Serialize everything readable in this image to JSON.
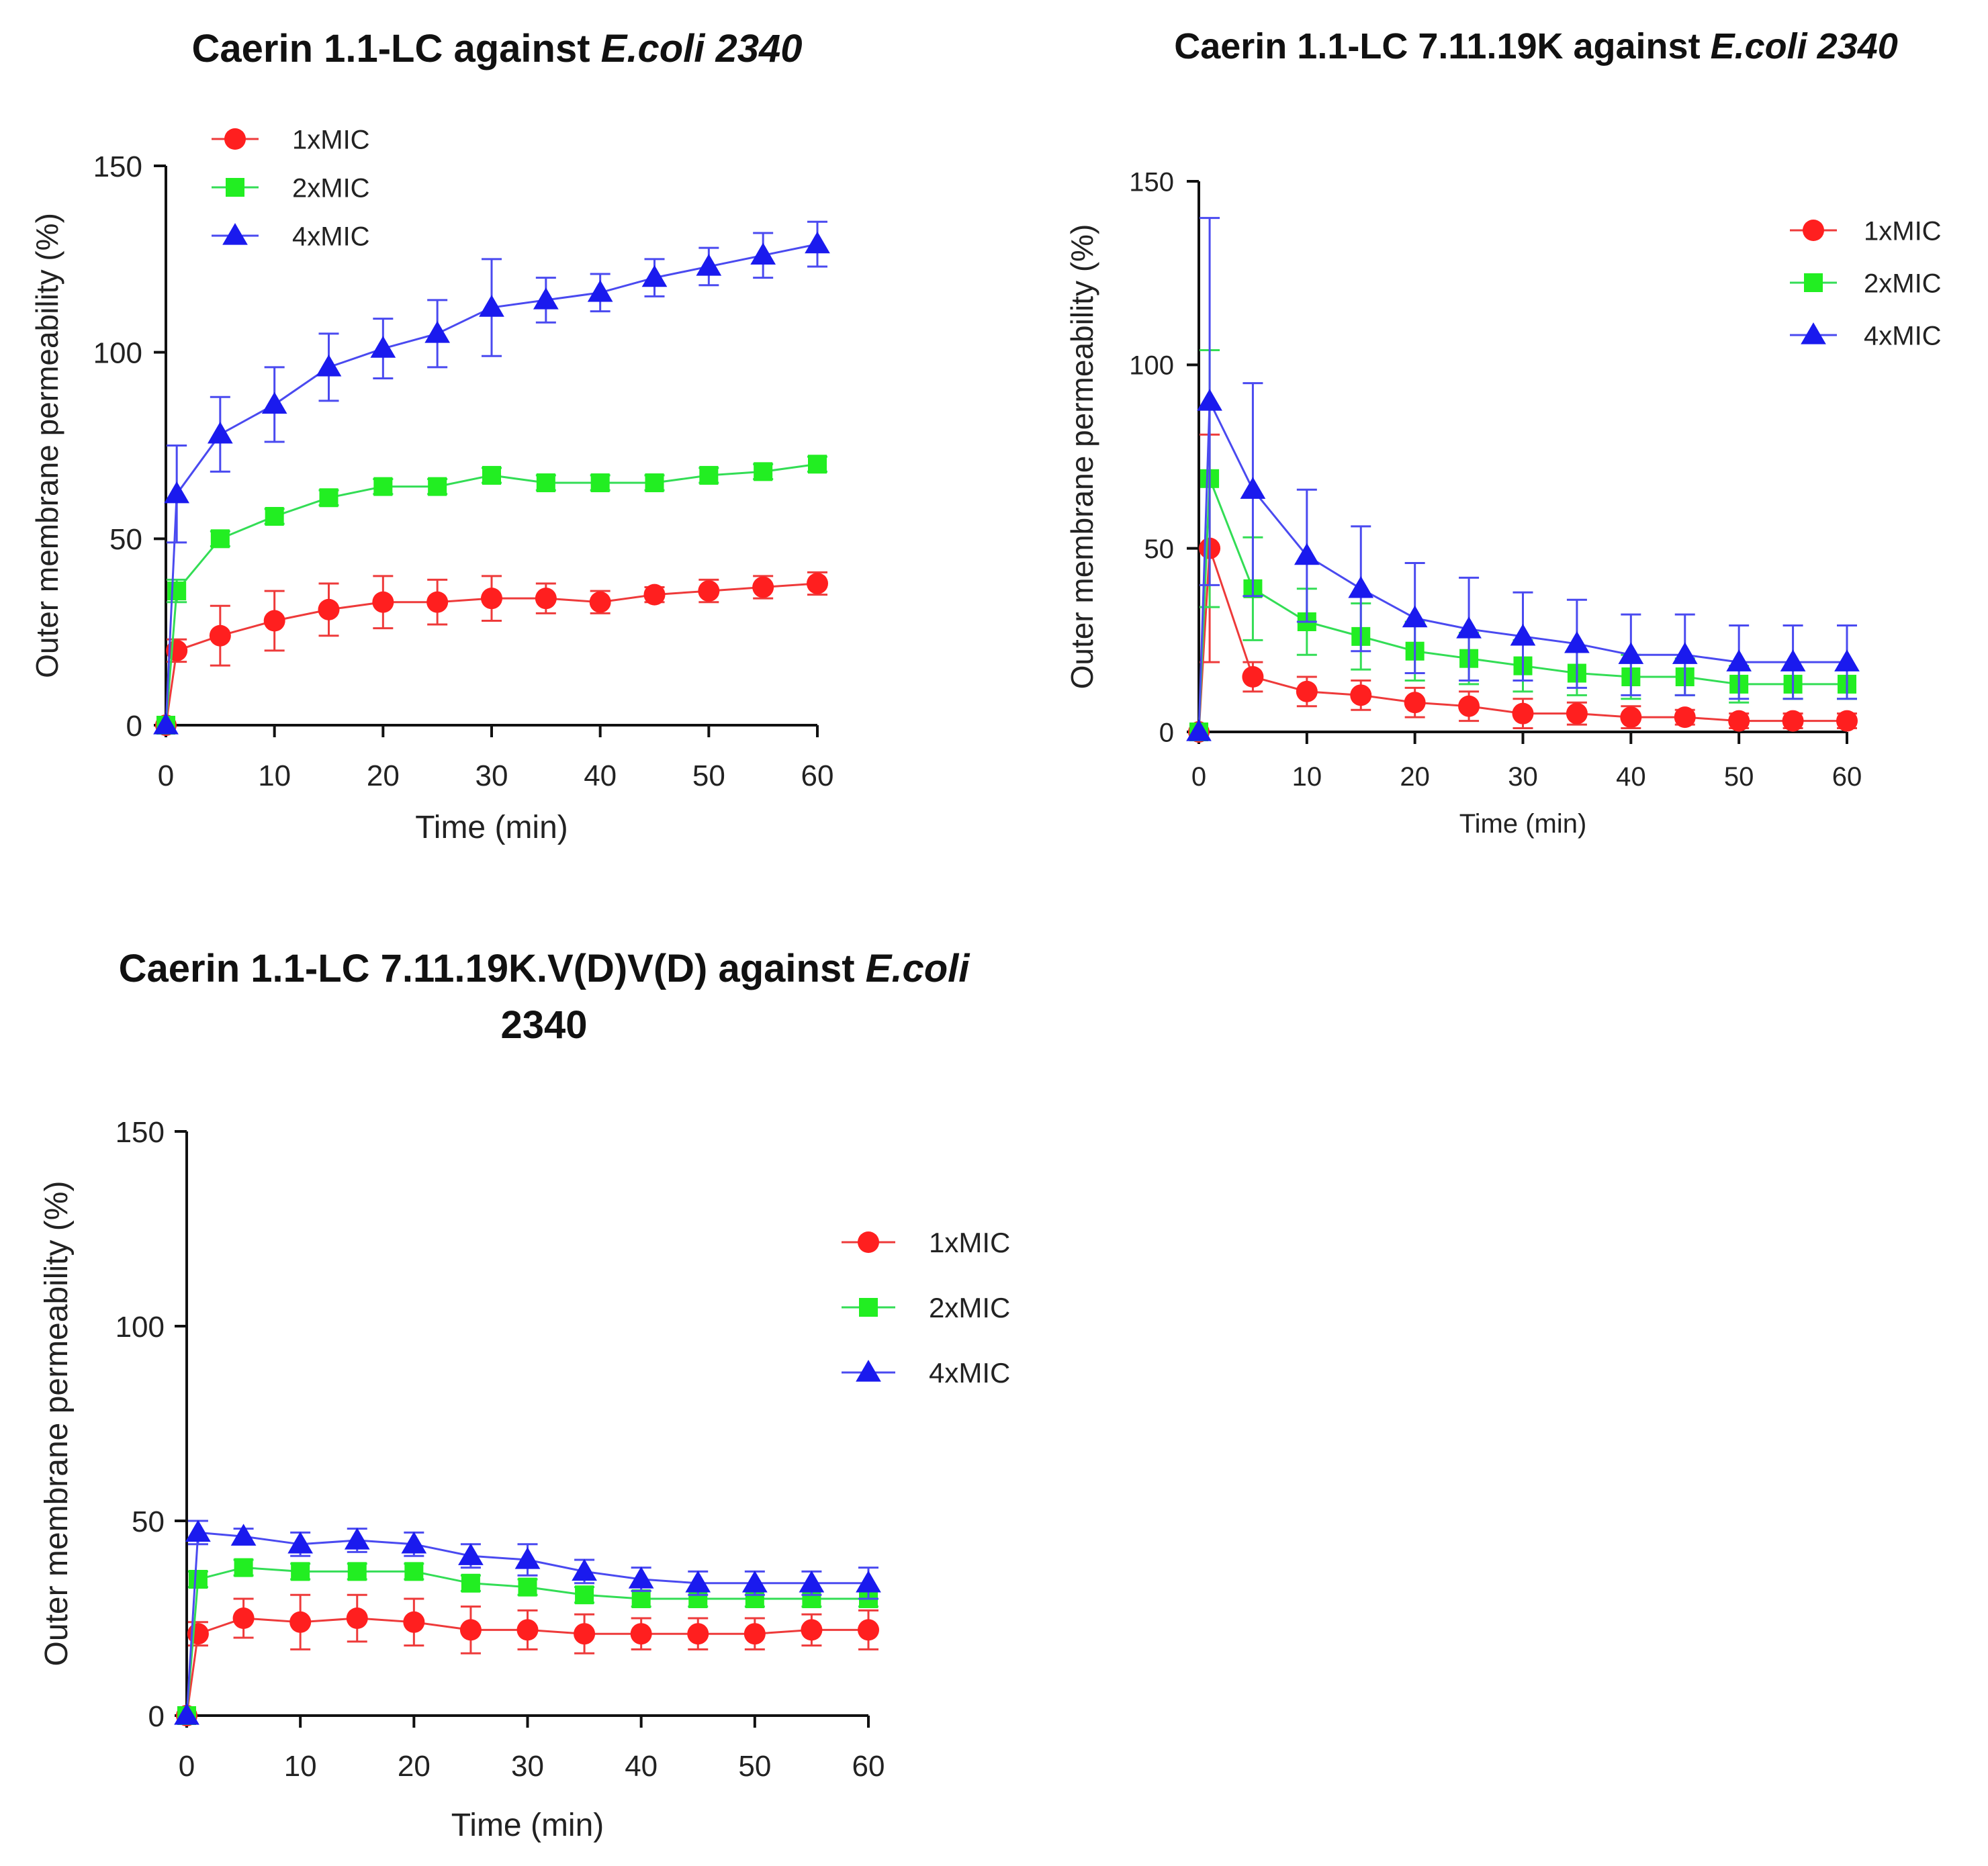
{
  "colors": {
    "1xMIC": "#ff1f1f",
    "2xMIC": "#22ee22",
    "4xMIC": "#1a1aee",
    "2xMIC_line": "#33dd55",
    "4xMIC_line": "#4a4af0",
    "1xMIC_line": "#ee3a3a"
  },
  "chart_data": [
    {
      "type": "line",
      "title_main": "Caerin 1.1-LC against ",
      "title_italic": "E.coli 2340",
      "xlabel": "Time (min)",
      "ylabel": "Outer membrane permeability (%)",
      "xlim": [
        0,
        60
      ],
      "ylim": [
        0,
        150
      ],
      "xticks": [
        0,
        10,
        20,
        30,
        40,
        50,
        60
      ],
      "yticks": [
        0,
        50,
        100,
        150
      ],
      "legend_position": "top-left",
      "x": [
        0,
        1,
        5,
        10,
        15,
        20,
        25,
        30,
        35,
        40,
        45,
        50,
        55,
        60
      ],
      "series": [
        {
          "name": "1xMIC",
          "marker": "circle",
          "values": [
            0,
            20,
            24,
            28,
            31,
            33,
            33,
            34,
            34,
            33,
            35,
            36,
            37,
            38
          ],
          "errors": [
            0,
            3,
            8,
            8,
            7,
            7,
            6,
            6,
            4,
            3,
            2,
            3,
            3,
            3
          ]
        },
        {
          "name": "2xMIC",
          "marker": "square",
          "values": [
            0,
            36,
            50,
            56,
            61,
            64,
            64,
            67,
            65,
            65,
            65,
            67,
            68,
            70
          ],
          "errors": [
            0,
            3,
            2,
            2,
            2,
            2,
            2,
            2,
            2,
            2,
            2,
            2,
            2,
            2
          ]
        },
        {
          "name": "4xMIC",
          "marker": "triangle",
          "values": [
            0,
            62,
            78,
            86,
            96,
            101,
            105,
            112,
            114,
            116,
            120,
            123,
            126,
            129
          ],
          "errors": [
            0,
            13,
            10,
            10,
            9,
            8,
            9,
            13,
            6,
            5,
            5,
            5,
            6,
            6
          ]
        }
      ]
    },
    {
      "type": "line",
      "title_main": "Caerin 1.1-LC 7.11.19K against ",
      "title_italic": "E.coli 2340",
      "xlabel": "Time (min)",
      "ylabel": "Outer membrane permeability (%)",
      "xlim": [
        0,
        60
      ],
      "ylim": [
        0,
        150
      ],
      "xticks": [
        0,
        10,
        20,
        30,
        40,
        50,
        60
      ],
      "yticks": [
        0,
        50,
        100,
        150
      ],
      "legend_position": "right",
      "x": [
        0,
        1,
        5,
        10,
        15,
        20,
        25,
        30,
        35,
        40,
        45,
        50,
        55,
        60
      ],
      "series": [
        {
          "name": "1xMIC",
          "marker": "circle",
          "values": [
            0,
            50,
            15,
            11,
            10,
            8,
            7,
            5,
            5,
            4,
            4,
            3,
            3,
            3
          ],
          "errors": [
            0,
            31,
            4,
            4,
            4,
            4,
            4,
            4,
            3,
            3,
            2,
            2,
            2,
            2
          ]
        },
        {
          "name": "2xMIC",
          "marker": "square",
          "values": [
            0,
            69,
            39,
            30,
            26,
            22,
            20,
            18,
            16,
            15,
            15,
            13,
            13,
            13
          ],
          "errors": [
            0,
            35,
            14,
            9,
            9,
            8,
            7,
            7,
            6,
            6,
            5,
            5,
            4,
            4
          ]
        },
        {
          "name": "4xMIC",
          "marker": "triangle",
          "values": [
            0,
            90,
            66,
            48,
            39,
            31,
            28,
            26,
            24,
            21,
            21,
            19,
            19,
            19
          ],
          "errors": [
            0,
            50,
            29,
            18,
            17,
            15,
            14,
            12,
            12,
            11,
            11,
            10,
            10,
            10
          ]
        }
      ]
    },
    {
      "type": "line",
      "title_main": "Caerin 1.1-LC 7.11.19K.V(D)V(D) against ",
      "title_italic": "E.coli",
      "title_line2": "2340",
      "xlabel": "Time (min)",
      "ylabel": "Outer membrane permeability (%)",
      "xlim": [
        0,
        60
      ],
      "ylim": [
        0,
        150
      ],
      "xticks": [
        0,
        10,
        20,
        30,
        40,
        50,
        60
      ],
      "yticks": [
        0,
        50,
        100,
        150
      ],
      "legend_position": "right",
      "x": [
        0,
        1,
        5,
        10,
        15,
        20,
        25,
        30,
        35,
        40,
        45,
        50,
        55,
        60
      ],
      "series": [
        {
          "name": "1xMIC",
          "marker": "circle",
          "values": [
            0,
            21,
            25,
            24,
            25,
            24,
            22,
            22,
            21,
            21,
            21,
            21,
            22,
            22
          ],
          "errors": [
            0,
            3,
            5,
            7,
            6,
            6,
            6,
            5,
            5,
            4,
            4,
            4,
            4,
            5
          ]
        },
        {
          "name": "2xMIC",
          "marker": "square",
          "values": [
            0,
            35,
            38,
            37,
            37,
            37,
            34,
            33,
            31,
            30,
            30,
            30,
            30,
            30
          ],
          "errors": [
            0,
            2,
            2,
            2,
            2,
            2,
            2,
            2,
            2,
            2,
            2,
            2,
            2,
            2
          ]
        },
        {
          "name": "4xMIC",
          "marker": "triangle",
          "values": [
            0,
            47,
            46,
            44,
            45,
            44,
            41,
            40,
            37,
            35,
            34,
            34,
            34,
            34
          ],
          "errors": [
            0,
            3,
            2,
            3,
            3,
            3,
            3,
            4,
            3,
            3,
            3,
            3,
            3,
            4
          ]
        }
      ]
    }
  ]
}
